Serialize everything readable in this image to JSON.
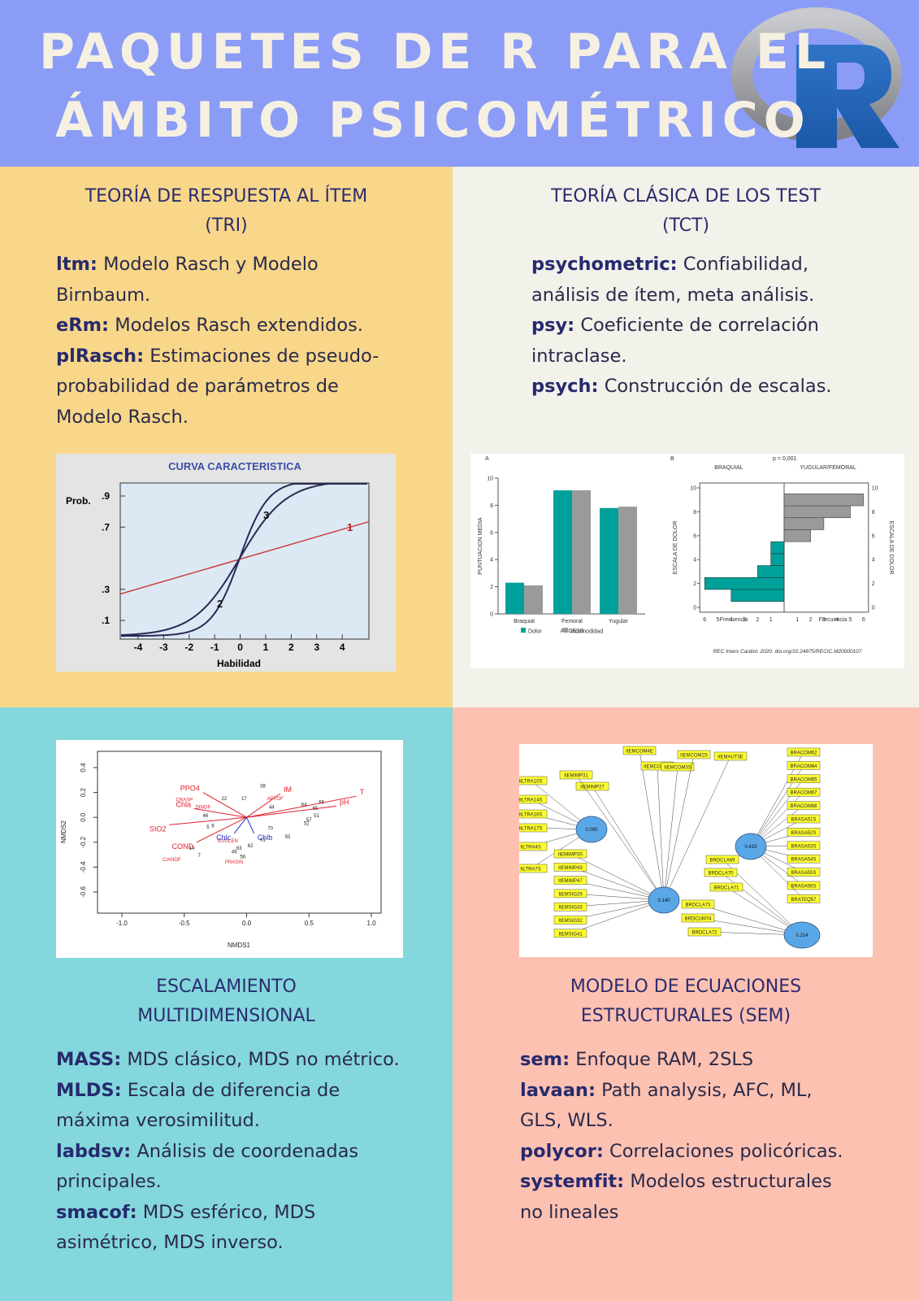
{
  "header": {
    "title": [
      "PAQUETES DE R PARA EL",
      "ÁMBITO PSICOMÉTRICO"
    ]
  },
  "sections": [
    {
      "title": [
        "TEORÍA DE RESPUESTA AL ÍTEM",
        "(TRI)"
      ],
      "items": [
        {
          "name": "ltm:",
          "desc": "Modelo Rasch y Modelo Birnbaum."
        },
        {
          "name": "eRm:",
          "desc": "Modelos Rasch extendidos."
        },
        {
          "name": "plRasch:",
          "desc": "Estimaciones de pseudo-probabilidad de parámetros de Modelo Rasch."
        }
      ]
    },
    {
      "title": [
        "TEORÍA CLÁSICA DE LOS TEST",
        "(TCT)"
      ],
      "items": [
        {
          "name": "psychometric:",
          "desc": "Confiabilidad, análisis de ítem, meta análisis."
        },
        {
          "name": "psy:",
          "desc": "Coeficiente de correlación intraclase."
        },
        {
          "name": "psych:",
          "desc": "Construcción de escalas."
        }
      ]
    },
    {
      "title": [
        "ESCALAMIENTO",
        "MULTIDIMENSIONAL"
      ],
      "items": [
        {
          "name": "MASS:",
          "desc": "MDS clásico, MDS no métrico."
        },
        {
          "name": "MLDS:",
          "desc": "Escala de diferencia de máxima verosimilitud."
        },
        {
          "name": "labdsv:",
          "desc": "Análisis de coordenadas principales."
        },
        {
          "name": "smacof:",
          "desc": "MDS esférico, MDS asimétrico, MDS inverso."
        }
      ]
    },
    {
      "title": [
        "MODELO DE ECUACIONES",
        "ESTRUCTURALES (SEM)"
      ],
      "items": [
        {
          "name": "sem:",
          "desc": "Enfoque RAM, 2SLS"
        },
        {
          "name": "lavaan:",
          "desc": "Path analysis, AFC, ML, GLS, WLS."
        },
        {
          "name": "polycor:",
          "desc": "Correlaciones policóricas."
        },
        {
          "name": "systemfit:",
          "desc": "Modelos estructurales no lineales"
        }
      ]
    }
  ],
  "figures": {
    "irt": {
      "title": "CURVA CARACTERISTICA",
      "ylabel": "Prob.",
      "xlabel": "Habilidad",
      "xticks": [
        -4,
        -3,
        -2,
        -1,
        0,
        1,
        2,
        3,
        4
      ],
      "yticks": [
        {
          "value": 0.1,
          "label": ".1"
        },
        {
          "value": 0.3,
          "label": ".3"
        },
        {
          "value": 0.7,
          "label": ".7"
        },
        {
          "value": 0.9,
          "label": ".9"
        }
      ],
      "curve_labels": [
        "1",
        "2",
        "3"
      ]
    },
    "tct": {
      "panel_a": "A",
      "panel_b": "B",
      "ylabel": "PUNTUACION MEDIA",
      "xlabel": "ACCESS",
      "categories": [
        "Braquial",
        "Femoral",
        "Yugular"
      ],
      "series": [
        {
          "name": "Dolor",
          "color": "#00a19a",
          "values": [
            2.3,
            9.1,
            7.8
          ]
        },
        {
          "name": "Incomodidad",
          "color": "#9a9a9a",
          "values": [
            2.1,
            9.1,
            7.9
          ]
        }
      ],
      "yticks": [
        0,
        2,
        4,
        6,
        8,
        10
      ],
      "p_value": "p = 0,001",
      "left_group": "BRAQUIAL",
      "right_group": "YUGULAR/FEMORAL",
      "scale_label": "ESCALA DE DOLOR",
      "freq_label": "Frecuencia",
      "freq_ticks": [
        1,
        2,
        3,
        4,
        5,
        6
      ],
      "scores": [
        1,
        2,
        3,
        4,
        5,
        6,
        7,
        8,
        9
      ],
      "left_counts": [
        4,
        6,
        2,
        1,
        1,
        null,
        null,
        null,
        null
      ],
      "right_counts": [
        null,
        null,
        null,
        null,
        null,
        2,
        3,
        5,
        6
      ],
      "citation": "REC Interv Cardiol. 2020. doi.org/10.24875/RECIC.M20000107"
    },
    "mds": {
      "xlabel": "NMDS1",
      "ylabel": "NMDS2",
      "xticks": [
        {
          "value": -1,
          "label": "-1.0"
        },
        {
          "value": -0.5,
          "label": "-0.5"
        },
        {
          "value": 0,
          "label": "0.0"
        },
        {
          "value": 0.5,
          "label": "0.5"
        },
        {
          "value": 1,
          "label": "1.0"
        }
      ],
      "yticks": [
        {
          "value": -0.6,
          "label": "-0.6"
        },
        {
          "value": -0.4,
          "label": "-0.4"
        },
        {
          "value": -0.2,
          "label": "-0.2"
        },
        {
          "value": 0,
          "label": "0.0"
        },
        {
          "value": 0.2,
          "label": "0.2"
        },
        {
          "value": 0.4,
          "label": "0.4"
        }
      ],
      "vectors": [
        {
          "name": "T",
          "x": 0.88,
          "y": 0.17,
          "color": "#e0202a"
        },
        {
          "name": "pH",
          "x": 0.72,
          "y": 0.09,
          "color": "#e0202a"
        },
        {
          "name": "IM",
          "x": 0.27,
          "y": 0.19,
          "color": "#e0202a"
        },
        {
          "name": "PPO4",
          "x": -0.35,
          "y": 0.2,
          "color": "#e0202a"
        },
        {
          "name": "Chla",
          "x": -0.42,
          "y": 0.07,
          "color": "#e0202a"
        },
        {
          "name": "SIO2",
          "x": -0.62,
          "y": -0.06,
          "color": "#e0202a"
        },
        {
          "name": "COND",
          "x": -0.4,
          "y": -0.2,
          "color": "#e0202a"
        },
        {
          "name": "Chlc",
          "x": -0.1,
          "y": -0.13,
          "color": "#2030d0"
        },
        {
          "name": "Chlb",
          "x": 0.06,
          "y": -0.13,
          "color": "#2030d0"
        }
      ],
      "labels": [
        {
          "name": "CRASP",
          "x": -0.5,
          "y": 0.13
        },
        {
          "name": "DINOF",
          "x": -0.35,
          "y": 0.07
        },
        {
          "name": "APTOF",
          "x": 0.23,
          "y": 0.14
        },
        {
          "name": "EUGLEN",
          "x": -0.15,
          "y": -0.2
        },
        {
          "name": "CIANOF",
          "x": -0.6,
          "y": -0.35
        },
        {
          "name": "PRASIN",
          "x": -0.1,
          "y": -0.37
        }
      ],
      "sites": [
        {
          "name": "38",
          "x": 0.13,
          "y": 0.24
        },
        {
          "name": "22",
          "x": -0.18,
          "y": 0.14
        },
        {
          "name": "17",
          "x": -0.02,
          "y": 0.14
        },
        {
          "name": "44",
          "x": 0.2,
          "y": 0.07
        },
        {
          "name": "64",
          "x": 0.46,
          "y": 0.09
        },
        {
          "name": "66",
          "x": 0.6,
          "y": 0.11
        },
        {
          "name": "65",
          "x": 0.55,
          "y": 0.06
        },
        {
          "name": "51",
          "x": 0.56,
          "y": 0.0
        },
        {
          "name": "57",
          "x": 0.5,
          "y": -0.03
        },
        {
          "name": "52",
          "x": 0.48,
          "y": -0.06
        },
        {
          "name": "70",
          "x": 0.19,
          "y": -0.1
        },
        {
          "name": "55",
          "x": 0.33,
          "y": -0.17
        },
        {
          "name": "61",
          "x": 0.13,
          "y": -0.19
        },
        {
          "name": "62",
          "x": 0.03,
          "y": -0.24
        },
        {
          "name": "63",
          "x": -0.06,
          "y": -0.26
        },
        {
          "name": "49",
          "x": -0.1,
          "y": -0.29
        },
        {
          "name": "56",
          "x": -0.03,
          "y": -0.33
        },
        {
          "name": "14",
          "x": -0.44,
          "y": -0.26
        },
        {
          "name": "7",
          "x": -0.38,
          "y": -0.32
        },
        {
          "name": "46",
          "x": -0.33,
          "y": 0.0
        },
        {
          "name": "5",
          "x": -0.31,
          "y": -0.09
        },
        {
          "name": "6",
          "x": -0.27,
          "y": -0.08
        }
      ]
    },
    "sem": {
      "factors": [
        "0.000",
        "0.140",
        "0.419",
        "0.214"
      ],
      "left": [
        "ItLTRA10S",
        "ItLTRA14S",
        "ItLTRA16S",
        "ItLTRA17S",
        "ItLTRA4S",
        "ItLTRA7S"
      ],
      "mid": [
        "ItEMIMP3S",
        "ItEMIMP43",
        "ItEMIMP47",
        "ItEMSIG29",
        "ItEMSIG33",
        "ItEMSIG32",
        "ItEMSIG41"
      ],
      "top": [
        "ItEMIMP27",
        "ItEMIMP31",
        "ItEMCOM4E",
        "ItEMCOM4S",
        "ItEMCOM3S",
        "ItEMCOM2S",
        "ItEMAUT3E"
      ],
      "right": [
        "BRACOM62",
        "BRACOM64",
        "BRACOM65",
        "BRACOM67",
        "BRACOM68",
        "BRASA51S",
        "BRASA52S",
        "BRASA53S",
        "BRASA54S",
        "BRASA55S",
        "BRASA56S",
        "BRATEQ57"
      ],
      "lower": [
        "BRDCLA69",
        "BRDCLA70",
        "BRDCLA71",
        "BRDCLA73",
        "BRDCUM74",
        "BRDCLA72"
      ]
    }
  }
}
